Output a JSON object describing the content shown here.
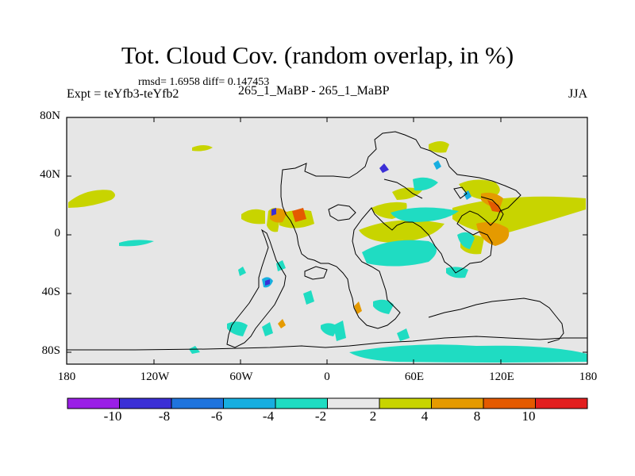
{
  "title": "Tot. Cloud Cov. (random overlap, in %)",
  "stats": "rmsd= 1.6958 diff= 0.147453",
  "expt": "Expt = teYfb3-teYfb2",
  "center_label": "265_1_MaBP - 265_1_MaBP",
  "season": "JJA",
  "lat_labels": [
    "80N",
    "40N",
    "0",
    "40S",
    "80S"
  ],
  "lon_labels": [
    "180",
    "120W",
    "60W",
    "0",
    "60E",
    "120E",
    "180"
  ],
  "colorbar": {
    "labels": [
      "-10",
      "-8",
      "-6",
      "-4",
      "-2",
      "2",
      "4",
      "8",
      "10"
    ],
    "colors": [
      "#9a1fe6",
      "#3b2fd6",
      "#1f74de",
      "#17aee0",
      "#1fdcc2",
      "#e8e8e8",
      "#c8d400",
      "#e59a00",
      "#e45a00",
      "#e21f1f"
    ]
  },
  "colors": {
    "background": "#e6e6e6",
    "positive_low": "#c8d400",
    "positive_mid": "#e59a00",
    "positive_high": "#e45a00",
    "negative_low": "#1fdcc2",
    "negative_mid": "#17aee0",
    "negative_high": "#3b2fd6"
  }
}
